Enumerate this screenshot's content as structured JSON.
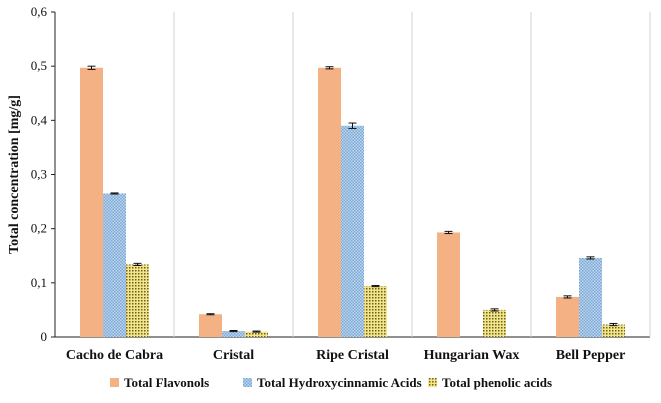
{
  "chart_data": {
    "type": "bar",
    "title": "",
    "xlabel": "",
    "ylabel": "Total concentration  [mg/g]",
    "ylim": [
      0,
      0.6
    ],
    "yticks": [
      "0",
      "0,1",
      "0,2",
      "0,3",
      "0,4",
      "0,5",
      "0,6"
    ],
    "categories": [
      "Cacho de Cabra",
      "Cristal",
      "Ripe Cristal",
      "Hungarian Wax",
      "Bell Pepper"
    ],
    "series": [
      {
        "name": "Total Flavonols",
        "color": "#f4b183",
        "pattern": "solid",
        "values": [
          0.497,
          0.042,
          0.497,
          0.193,
          0.074
        ],
        "errors": [
          0.003,
          0.001,
          0.002,
          0.002,
          0.002
        ]
      },
      {
        "name": "Total Hydroxycinnamic Acids",
        "color": "#9dc3e6",
        "pattern": "checker",
        "values": [
          0.265,
          0.011,
          0.39,
          null,
          0.146
        ],
        "errors": [
          0.001,
          0.001,
          0.005,
          null,
          0.002
        ]
      },
      {
        "name": "Total phenolic acids",
        "color": "#e8d96a",
        "pattern": "dots",
        "values": [
          0.134,
          0.01,
          0.094,
          0.05,
          0.023
        ],
        "errors": [
          0.002,
          0.001,
          0.001,
          0.002,
          0.002
        ]
      }
    ],
    "grid": "vertical separators between categories",
    "legend": "bottom"
  }
}
